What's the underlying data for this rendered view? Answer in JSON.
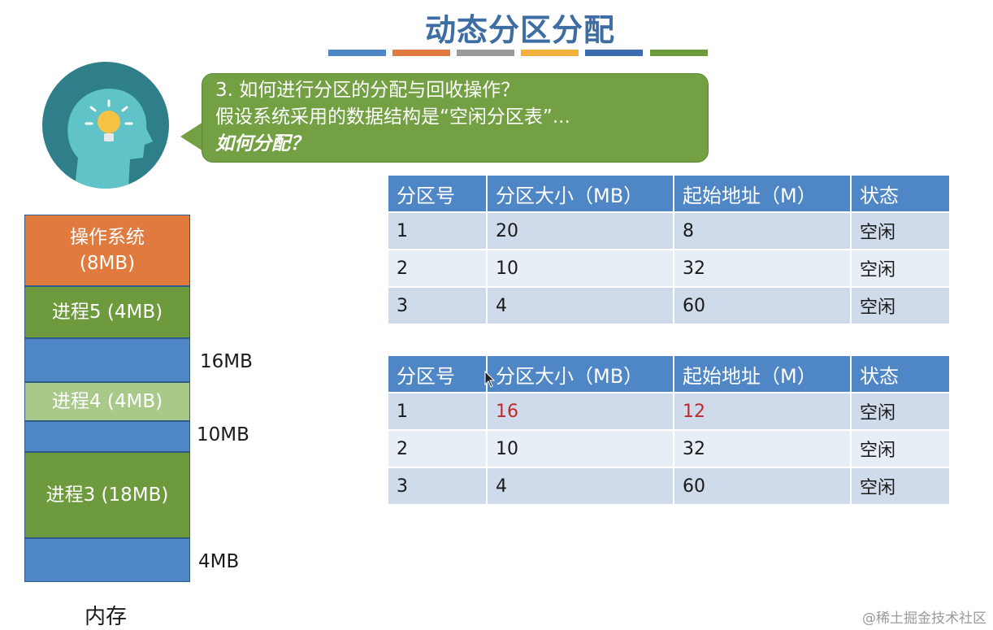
{
  "title": "动态分区分配",
  "title_bar_colors": [
    "#4f86c6",
    "#e07a3f",
    "#9a9a9a",
    "#f2b13a",
    "#3d6bb0",
    "#6e9a3e"
  ],
  "bubble": {
    "line1": "3. 如何进行分区的分配与回收操作？",
    "line2": "假设系统采用的数据结构是“空闲分区表”...",
    "line3": "如何分配？"
  },
  "table_headers": [
    "分区号",
    "分区大小（MB）",
    "起始地址（M）",
    "状态"
  ],
  "table_before": [
    [
      "1",
      "20",
      "8",
      "空闲"
    ],
    [
      "2",
      "10",
      "32",
      "空闲"
    ],
    [
      "3",
      "4",
      "60",
      "空闲"
    ]
  ],
  "table_after": [
    [
      "1",
      "16",
      "12",
      "空闲"
    ],
    [
      "2",
      "10",
      "32",
      "空闲"
    ],
    [
      "3",
      "4",
      "60",
      "空闲"
    ]
  ],
  "memory": {
    "os_label": "操作系统",
    "os_size": "(8MB)",
    "p5": "进程5 (4MB)",
    "p4": "进程4 (4MB)",
    "p3": "进程3 (18MB)",
    "free1": "16MB",
    "free2": "10MB",
    "free3": "4MB",
    "caption": "内存"
  },
  "watermark": "@稀土掘金技术社区",
  "colors": {
    "os": "#e07a3f",
    "process": "#6e9a3e",
    "process_light": "#a9c98a",
    "free": "#4f86c6",
    "highlight": "#c0282d"
  }
}
